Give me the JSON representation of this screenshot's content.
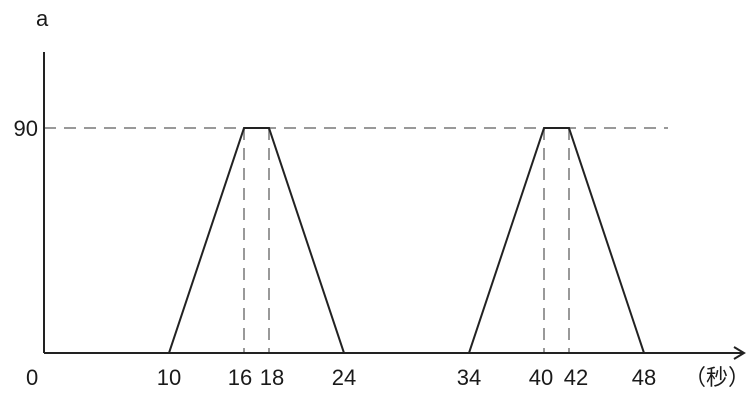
{
  "chart_data": {
    "type": "line",
    "ylabel": "a",
    "xunit": "（秒）",
    "origin_label": "0",
    "xticks": [
      10,
      16,
      18,
      24,
      34,
      40,
      42,
      48
    ],
    "yticks": [
      90
    ],
    "xlim": [
      0,
      60
    ],
    "ylim": [
      0,
      100
    ],
    "series": [
      {
        "x": [
          0,
          10,
          16,
          18,
          24,
          34,
          40,
          42,
          48
        ],
        "y": [
          0,
          0,
          90,
          90,
          0,
          0,
          90,
          90,
          0
        ]
      }
    ],
    "reference_lines": {
      "horizontal": [
        90
      ],
      "vertical": [
        16,
        18,
        40,
        42
      ]
    },
    "colors": {
      "series": "#222222",
      "guides": "#999999"
    }
  }
}
